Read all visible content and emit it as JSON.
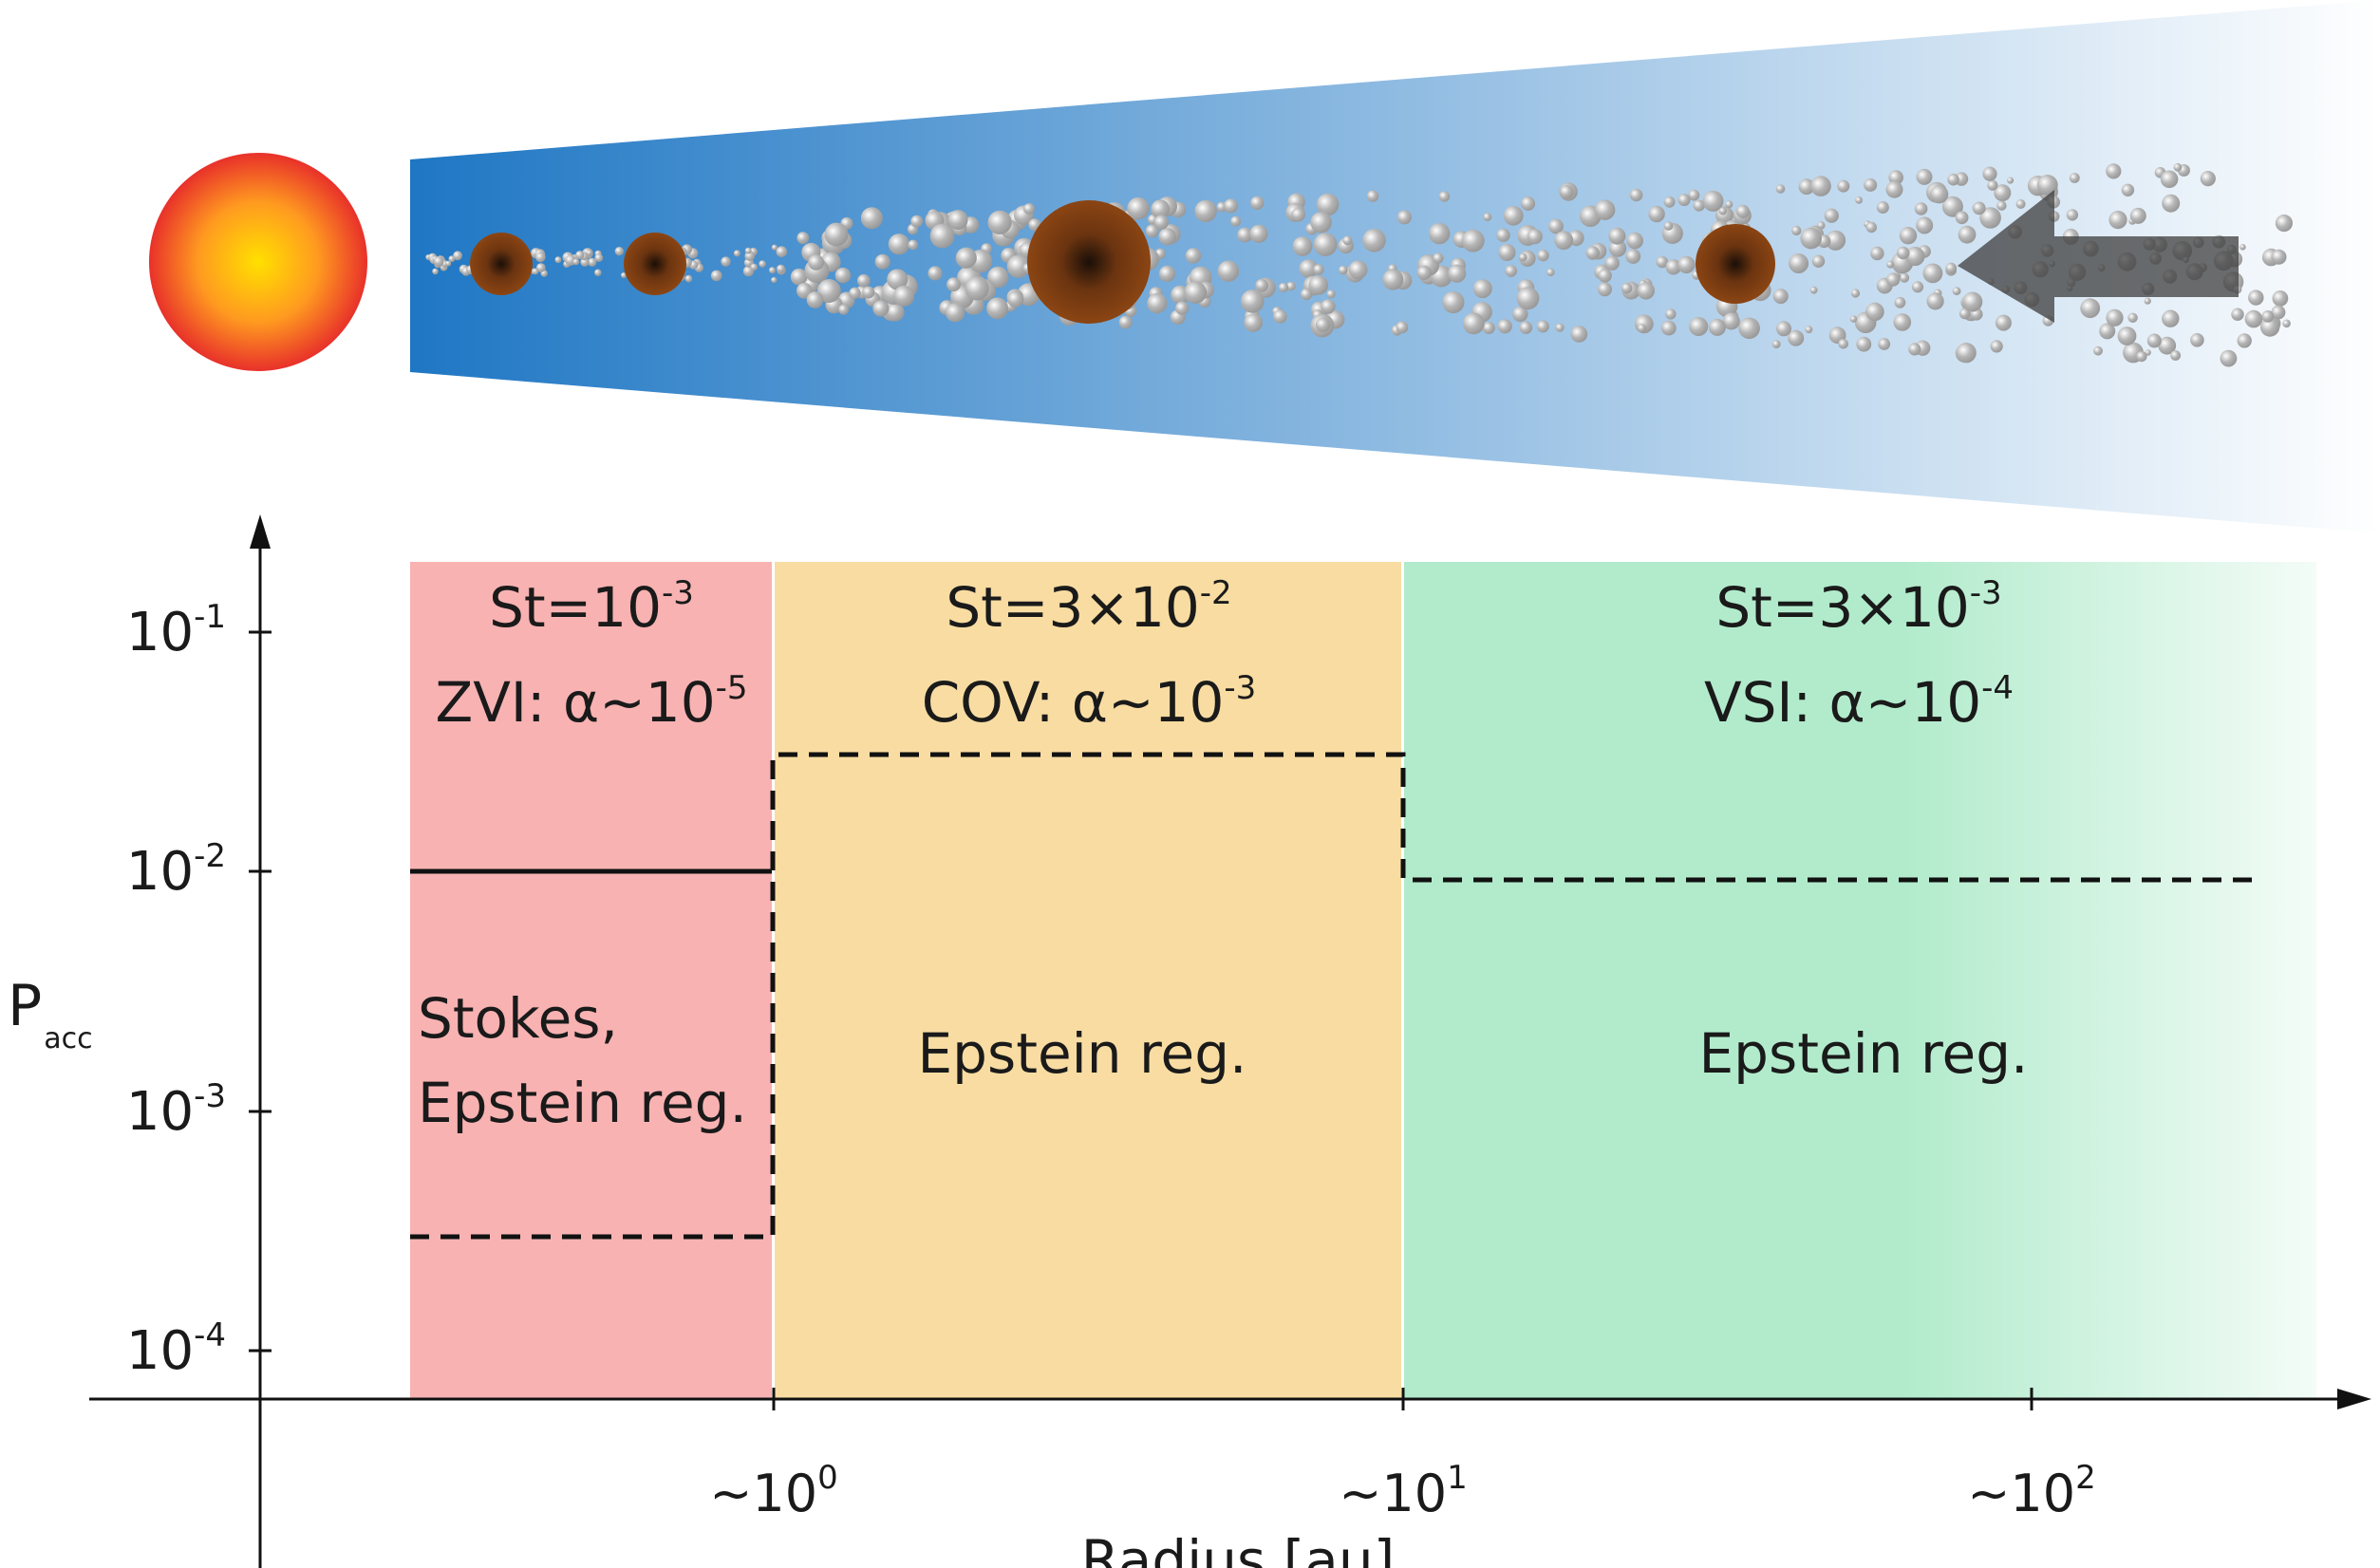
{
  "disk": {
    "star_colors": {
      "center": "#ffe000",
      "mid": "#ff9a20",
      "edge": "#e8312a"
    },
    "gradient_colors": {
      "inner": "#1f77c4",
      "outer": "#ffffff"
    },
    "planetesimal_color": "#8b4513",
    "pebble_color": "#9a9a9a",
    "arrow_color": "#444444",
    "arrow_icon": "left-arrow-icon"
  },
  "plot": {
    "y_axis": {
      "label_main": "P",
      "label_sub": "acc",
      "ticks": [
        {
          "base": "10",
          "exp": "-1"
        },
        {
          "base": "10",
          "exp": "-2"
        },
        {
          "base": "10",
          "exp": "-3"
        },
        {
          "base": "10",
          "exp": "-4"
        }
      ]
    },
    "x_axis": {
      "label": "Radius [au]",
      "ticks": [
        {
          "base": "~10",
          "exp": "0"
        },
        {
          "base": "~10",
          "exp": "1"
        },
        {
          "base": "~10",
          "exp": "2"
        }
      ]
    },
    "regions": [
      {
        "color": "#f8b2b2",
        "line1": {
          "base": "St=10",
          "exp": "-3"
        },
        "line2": {
          "base": "ZVI: α~10",
          "exp": "-5"
        },
        "regime_lines": [
          "Stokes,",
          "Epstein reg."
        ]
      },
      {
        "color": "#f8dca2",
        "line1": {
          "base": "St=3×10",
          "exp": "-2"
        },
        "line2": {
          "base": "COV: α~10",
          "exp": "-3"
        },
        "regime_lines": [
          "Epstein reg."
        ]
      },
      {
        "color": "#b2ebcc",
        "line1": {
          "base": "St=3×10",
          "exp": "-3"
        },
        "line2": {
          "base": "VSI: α~10",
          "exp": "-4"
        },
        "regime_lines": [
          "Epstein reg."
        ]
      }
    ]
  }
}
